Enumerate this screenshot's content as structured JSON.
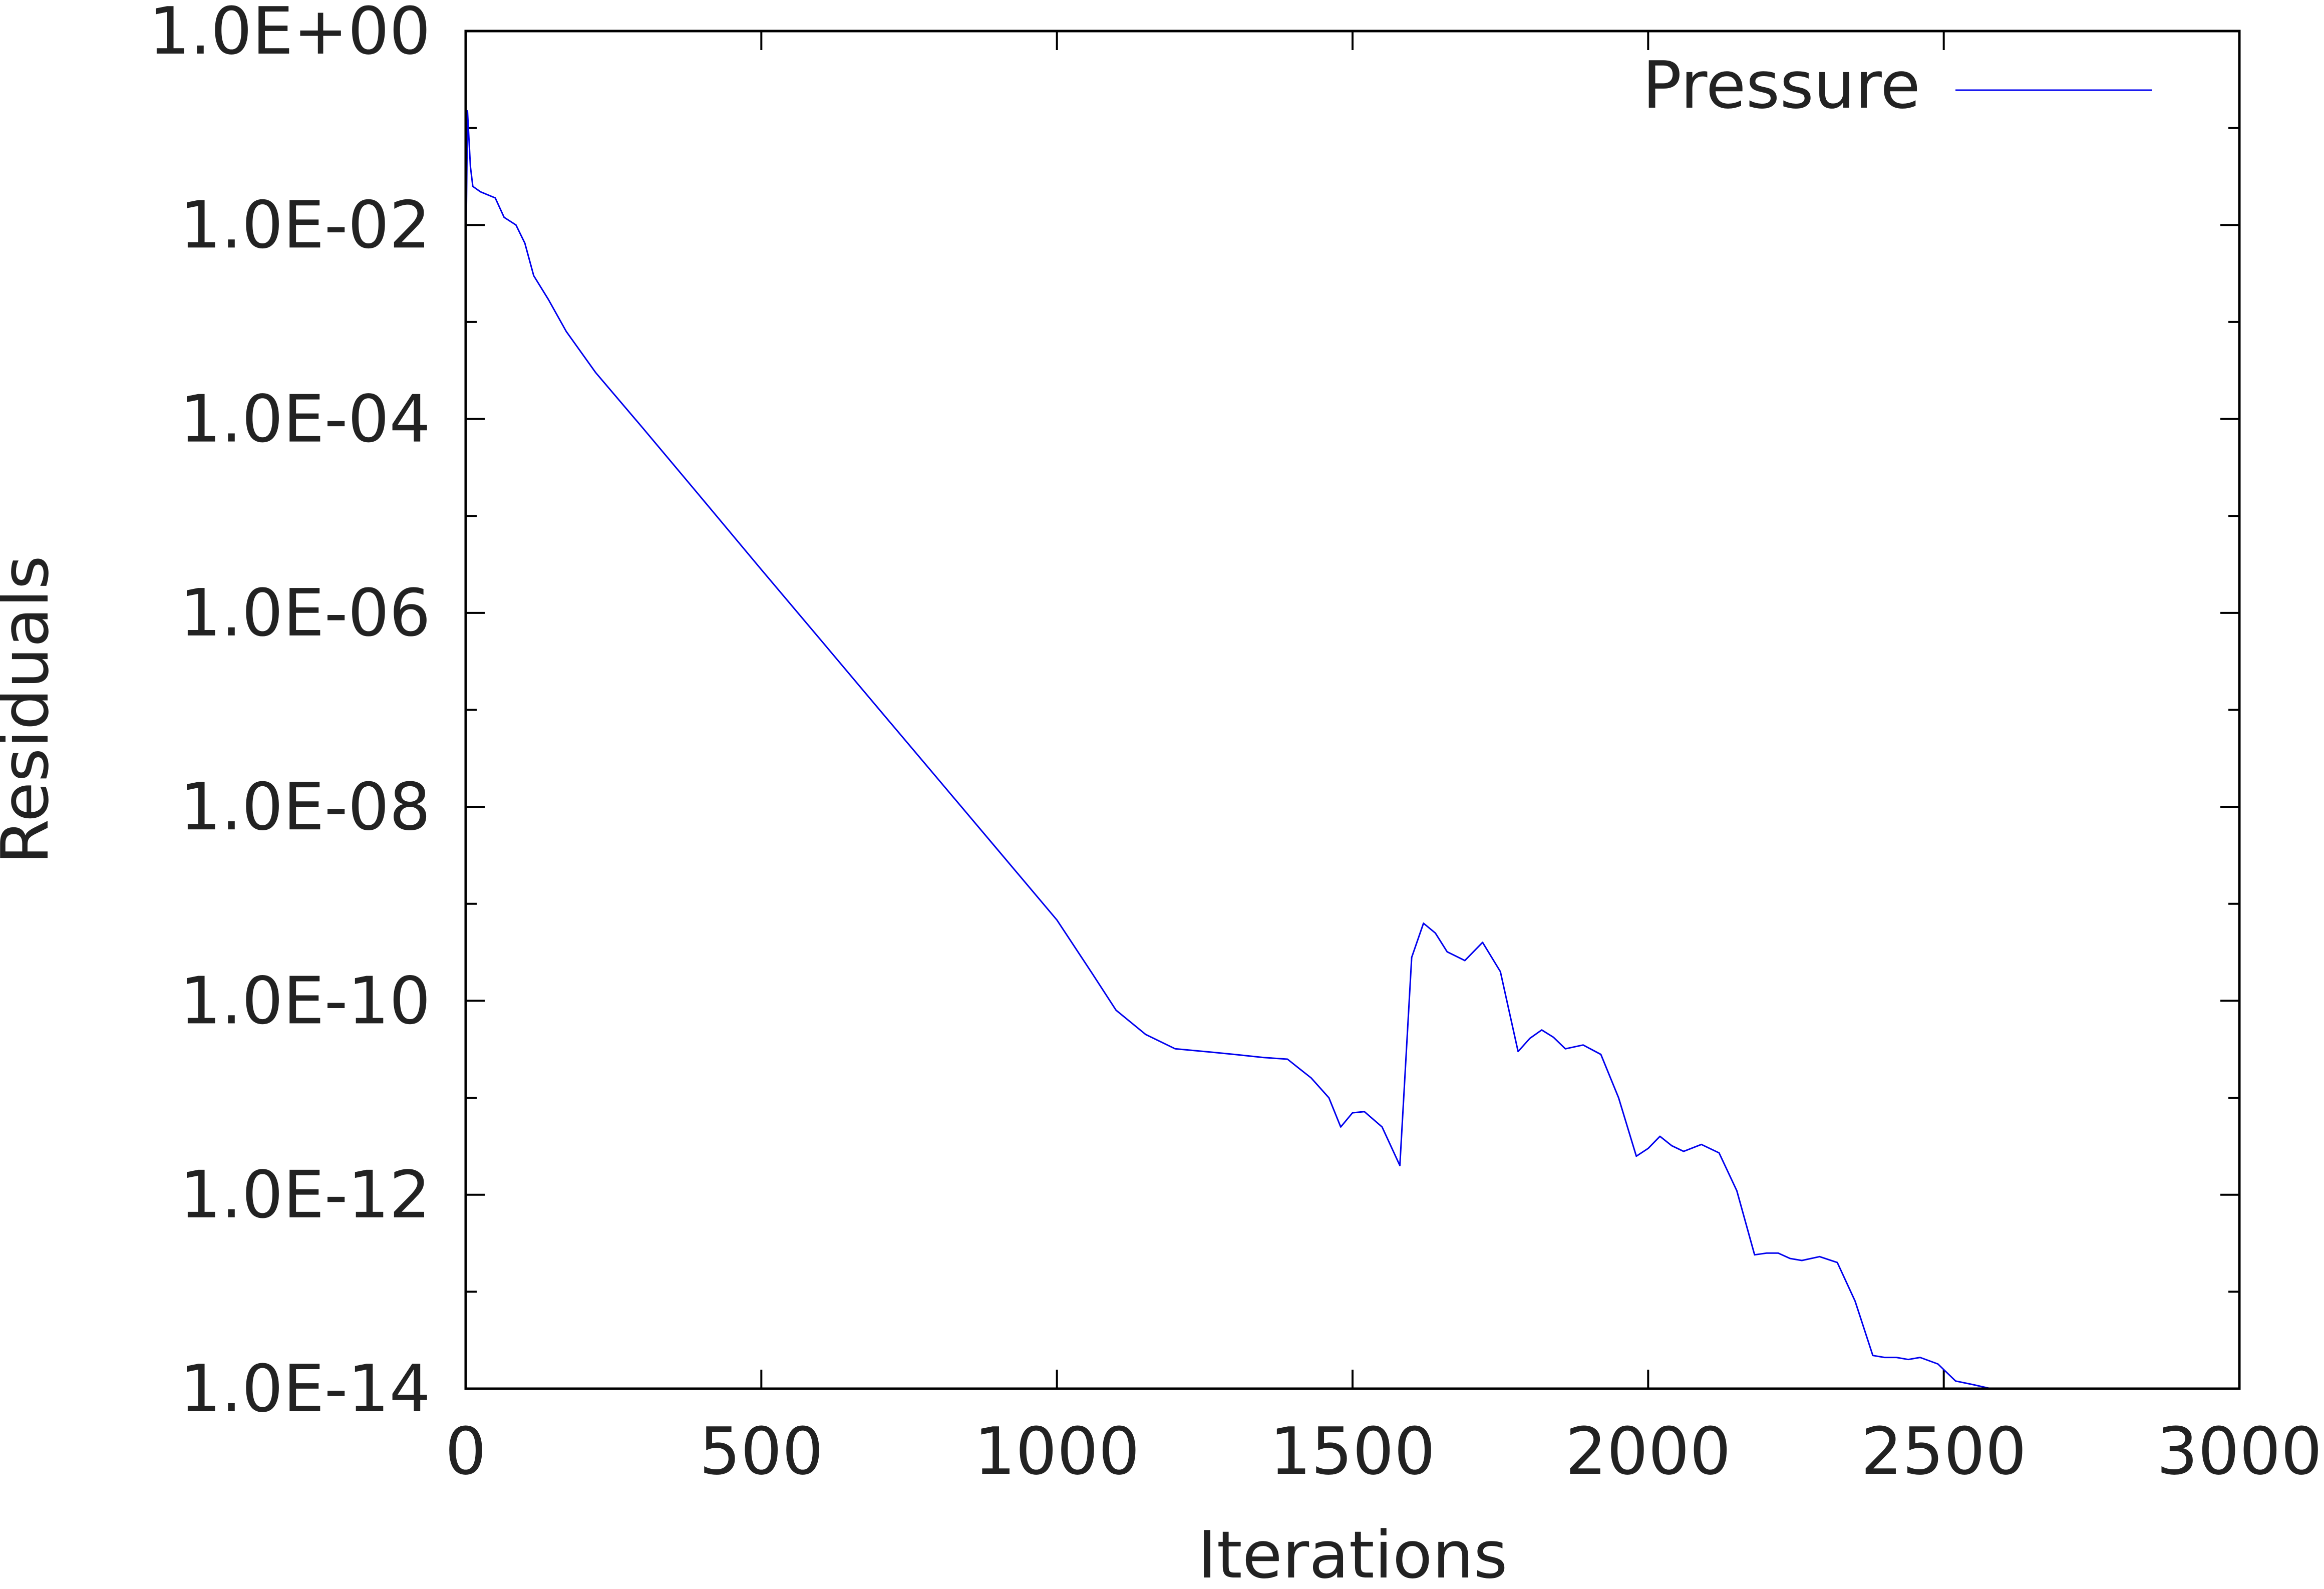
{
  "chart_data": {
    "type": "line",
    "xlabel": "Iterations",
    "ylabel": "Residuals",
    "xlim": [
      0,
      3000
    ],
    "ylim": [
      1e-14,
      1
    ],
    "yscale": "log",
    "xticks": [
      0,
      500,
      1000,
      1500,
      2000,
      2500,
      3000
    ],
    "xtick_labels": [
      "0",
      "500",
      "1000",
      "1500",
      "2000",
      "2500",
      "3000"
    ],
    "yticks": [
      1,
      0.01,
      0.0001,
      1e-06,
      1e-08,
      1e-10,
      1e-12,
      1e-14
    ],
    "ytick_labels": [
      "1.0E+00",
      "1.0E-02",
      "1.0E-04",
      "1.0E-06",
      "1.0E-08",
      "1.0E-10",
      "1.0E-12",
      "1.0E-14"
    ],
    "legend_position": "top-right",
    "grid": false,
    "series": [
      {
        "name": "Pressure",
        "color": "#0000ee",
        "x": [
          0,
          3,
          8,
          12,
          25,
          50,
          65,
          85,
          100,
          115,
          140,
          170,
          220,
          300,
          400,
          500,
          600,
          700,
          800,
          900,
          1000,
          1060,
          1100,
          1150,
          1200,
          1250,
          1300,
          1350,
          1390,
          1410,
          1430,
          1460,
          1480,
          1500,
          1520,
          1550,
          1580,
          1600,
          1620,
          1640,
          1660,
          1690,
          1720,
          1750,
          1780,
          1800,
          1820,
          1840,
          1860,
          1890,
          1920,
          1950,
          1980,
          2000,
          2020,
          2040,
          2060,
          2090,
          2120,
          2150,
          2180,
          2200,
          2220,
          2240,
          2260,
          2290,
          2320,
          2350,
          2380,
          2400,
          2420,
          2440,
          2460,
          2490,
          2520,
          2550,
          2580,
          2600,
          2620,
          2650,
          2700,
          2800,
          2900,
          3000
        ],
        "y": [
          0.003,
          0.15,
          0.04,
          0.025,
          0.022,
          0.019,
          0.012,
          0.01,
          0.0065,
          0.003,
          0.0017,
          0.0008,
          0.0003,
          8e-05,
          1.5e-05,
          2.8e-06,
          5.3e-07,
          1e-07,
          1.9e-08,
          3.6e-09,
          6.8e-10,
          1.9e-10,
          8e-11,
          4.5e-11,
          3.2e-11,
          3e-11,
          2.8e-11,
          2.6e-11,
          2.5e-11,
          2e-11,
          1.6e-11,
          1e-11,
          5e-12,
          7e-12,
          7.2e-12,
          5e-12,
          2e-12,
          2.8e-10,
          6.3e-10,
          5e-10,
          3.2e-10,
          2.6e-10,
          4e-10,
          2e-10,
          3e-11,
          4.1e-11,
          5e-11,
          4.2e-11,
          3.2e-11,
          3.5e-11,
          2.8e-11,
          1e-11,
          2.5e-12,
          3e-12,
          4e-12,
          3.2e-12,
          2.8e-12,
          3.3e-12,
          2.7e-12,
          1.1e-12,
          2.4e-13,
          2.5e-13,
          2.5e-13,
          2.2e-13,
          2.1e-13,
          2.3e-13,
          2e-13,
          8e-14,
          2.2e-14,
          2.1e-14,
          2.1e-14,
          2e-14,
          2.1e-14,
          1.8e-14,
          1.2e-14,
          1.1e-14,
          1e-14,
          1e-14,
          1e-14,
          1e-14,
          1e-14,
          1e-14,
          1e-14,
          1e-14
        ]
      }
    ]
  }
}
